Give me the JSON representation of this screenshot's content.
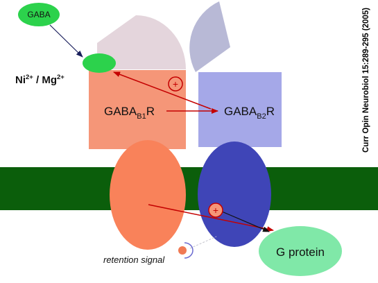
{
  "labels": {
    "gaba": "GABA",
    "ions": {
      "ni": "Ni",
      "ni_sup": "2+",
      "sep": " / Mg",
      "mg_sup": "2+"
    },
    "r1": {
      "main": "GABA",
      "sub": "B1",
      "suffix": "R"
    },
    "r2": {
      "main": "GABA",
      "sub": "B2",
      "suffix": "R"
    },
    "plus": "+",
    "retention_signal": "retention signal",
    "g_protein": "G protein"
  },
  "citation": "Curr Opin Neurobiol 15:289-295 (2005)",
  "colors": {
    "membrane": "#0b5e0b",
    "gaba_green": "#2cd24c",
    "b1_light": "#e4d5dc",
    "b1_box": "#f59678",
    "b1_tm": "#f9825a",
    "b2_light": "#b8b9d6",
    "b2_box": "#a5a8e8",
    "b2_tm": "#3f45b7",
    "g_protein": "#80e8a8",
    "arrow_red": "#c40000",
    "retention_dot": "#f07a54"
  }
}
